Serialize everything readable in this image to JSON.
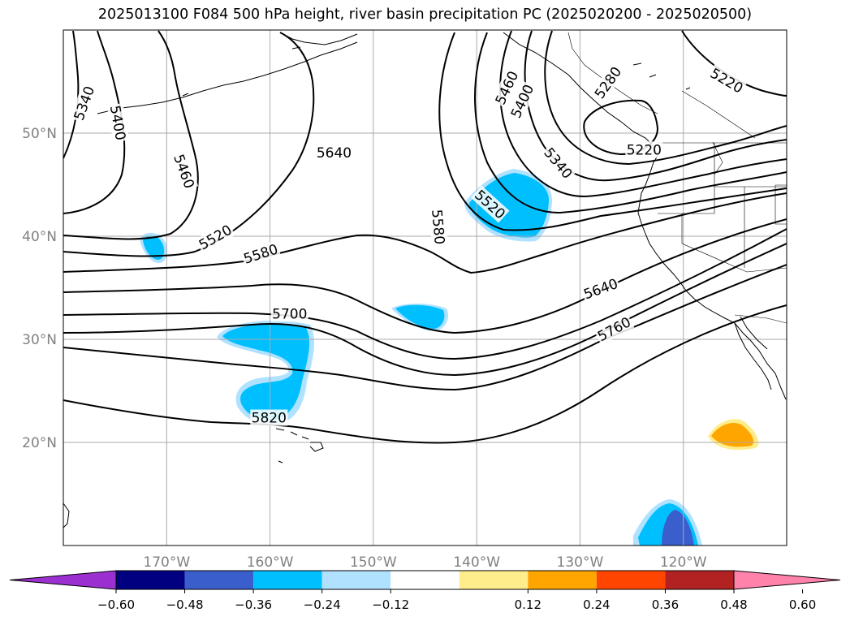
{
  "title": "2025013100 F084 500 hPa height, river basin precipitation PC (2025020200 - 2025020500)",
  "map": {
    "lon_range": [
      -180,
      -110
    ],
    "lat_range": [
      10,
      60
    ],
    "lon_ticks": [
      {
        "lon": -170,
        "label": "170°W"
      },
      {
        "lon": -160,
        "label": "160°W"
      },
      {
        "lon": -150,
        "label": "150°W"
      },
      {
        "lon": -140,
        "label": "140°W"
      },
      {
        "lon": -130,
        "label": "130°W"
      },
      {
        "lon": -120,
        "label": "120°W"
      }
    ],
    "lat_ticks": [
      {
        "lat": 50,
        "label": "50°N"
      },
      {
        "lat": 40,
        "label": "40°N"
      },
      {
        "lat": 30,
        "label": "30°N"
      },
      {
        "lat": 20,
        "label": "20°N"
      }
    ],
    "contour_labels": [
      {
        "text": "5340",
        "lon": -178,
        "lat": 52.9,
        "rot": -70
      },
      {
        "text": "5400",
        "lon": -174.7,
        "lat": 51,
        "rot": 80
      },
      {
        "text": "5460",
        "lon": -168.3,
        "lat": 46.3,
        "rot": 70
      },
      {
        "text": "5520",
        "lon": -165.3,
        "lat": 39.9,
        "rot": -30
      },
      {
        "text": "5580",
        "lon": -160.9,
        "lat": 38.3,
        "rot": -18
      },
      {
        "text": "5640",
        "lon": -153.8,
        "lat": 48.1,
        "rot": 0
      },
      {
        "text": "5580",
        "lon": -143.7,
        "lat": 40.9,
        "rot": 85
      },
      {
        "text": "5520",
        "lon": -138.7,
        "lat": 43.1,
        "rot": 42
      },
      {
        "text": "5460",
        "lon": -137.1,
        "lat": 54.4,
        "rot": -65
      },
      {
        "text": "5400",
        "lon": -135.6,
        "lat": 53.1,
        "rot": -65
      },
      {
        "text": "5340",
        "lon": -132.1,
        "lat": 47.1,
        "rot": 50
      },
      {
        "text": "5280",
        "lon": -127.3,
        "lat": 54.9,
        "rot": -55
      },
      {
        "text": "5220",
        "lon": -123.8,
        "lat": 48.4,
        "rot": 0
      },
      {
        "text": "5220",
        "lon": -115.8,
        "lat": 55.1,
        "rot": 30
      },
      {
        "text": "5700",
        "lon": -158.1,
        "lat": 32.5,
        "rot": 0
      },
      {
        "text": "5640",
        "lon": -128,
        "lat": 34.9,
        "rot": -20
      },
      {
        "text": "5760",
        "lon": -126.7,
        "lat": 31,
        "rot": -28
      },
      {
        "text": "5820",
        "lon": -160.1,
        "lat": 22.4,
        "rot": 0
      }
    ]
  },
  "colorbar": {
    "tick_labels": [
      "−0.60",
      "−0.48",
      "−0.36",
      "−0.24",
      "−0.12",
      "0.12",
      "0.24",
      "0.36",
      "0.48",
      "0.60"
    ],
    "colors": [
      "#9b30d0",
      "#000080",
      "#3a5fcd",
      "#00bfff",
      "#b0e2ff",
      "#ffffff",
      "#ffec8b",
      "#ffa500",
      "#ff4500",
      "#b22222",
      "#ff82ab"
    ]
  }
}
